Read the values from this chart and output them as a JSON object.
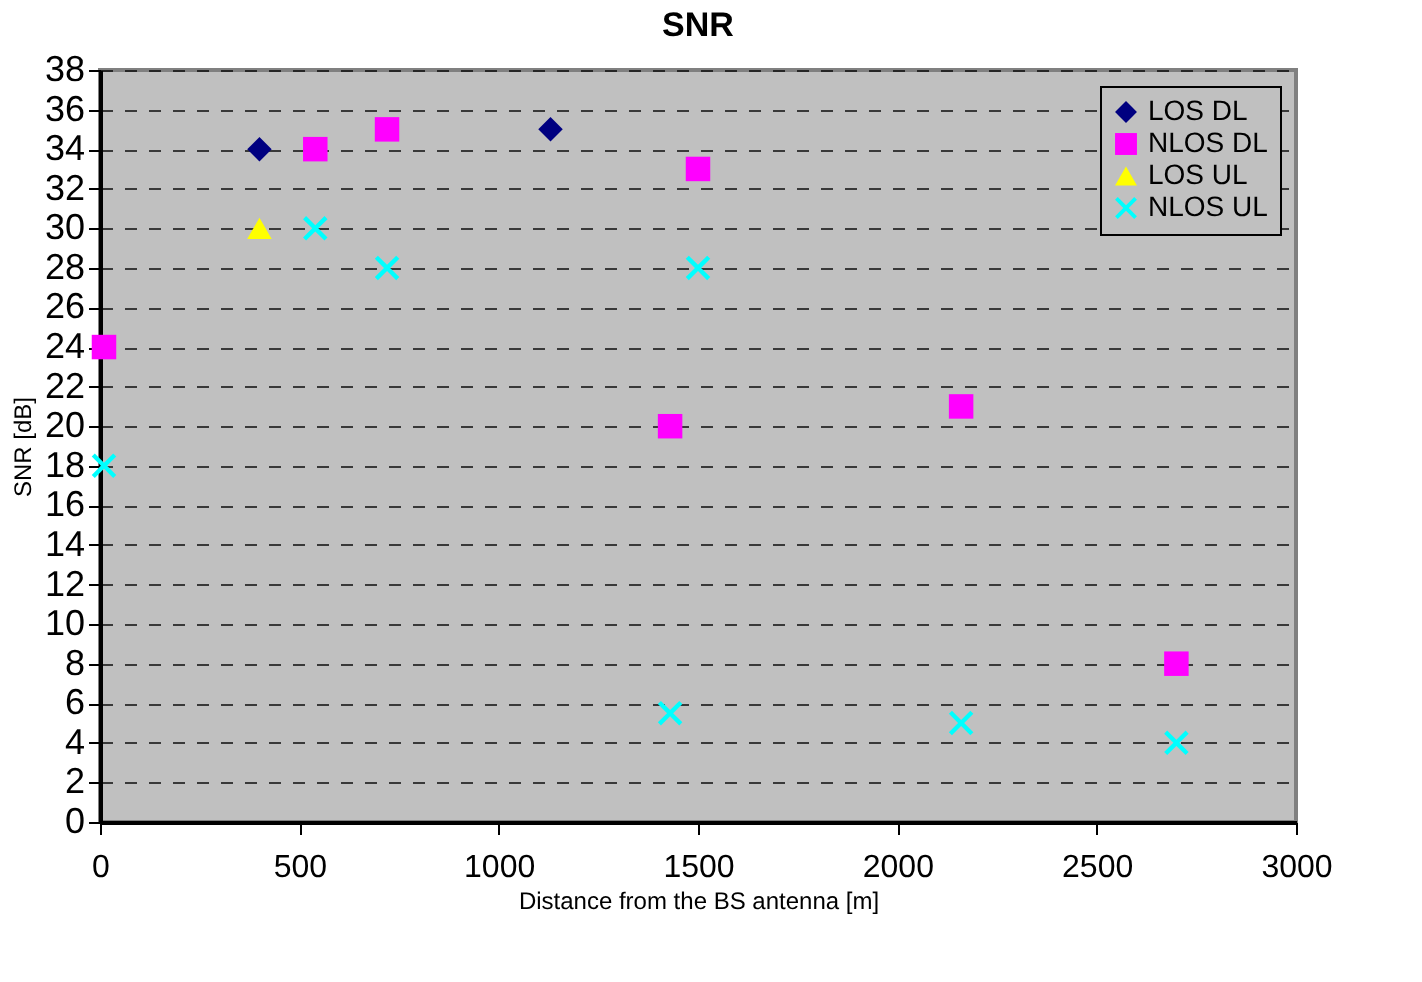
{
  "chart_data": {
    "type": "scatter",
    "title": "SNR",
    "xlabel": "Distance from the BS antenna [m]",
    "ylabel": "SNR [dB]",
    "xlim": [
      0,
      3000
    ],
    "xticks": [
      0,
      500,
      1000,
      1500,
      2000,
      2500,
      3000
    ],
    "ylim": [
      0,
      38
    ],
    "yticks": [
      0,
      2,
      4,
      6,
      8,
      10,
      12,
      14,
      16,
      18,
      20,
      22,
      24,
      26,
      28,
      30,
      32,
      34,
      36,
      38
    ],
    "grid": "y",
    "legend": "top right",
    "series": [
      {
        "name": "LOS DL",
        "color": "#000080",
        "marker": "diamond",
        "x": [
          400,
          1130
        ],
        "values": [
          34,
          35
        ]
      },
      {
        "name": "NLOS DL",
        "color": "#ff00ff",
        "marker": "square",
        "x": [
          10,
          540,
          720,
          1430,
          1500,
          2160,
          2700
        ],
        "values": [
          24,
          34,
          35,
          20,
          33,
          21,
          8
        ]
      },
      {
        "name": "LOS UL",
        "color": "#ffff00",
        "marker": "triangle",
        "x": [
          400
        ],
        "values": [
          30
        ]
      },
      {
        "name": "NLOS UL",
        "color": "#00ffff",
        "marker": "cross",
        "x": [
          10,
          540,
          720,
          1430,
          1500,
          2160,
          2700
        ],
        "values": [
          18,
          30,
          28,
          5.5,
          28,
          5,
          4
        ]
      }
    ]
  }
}
